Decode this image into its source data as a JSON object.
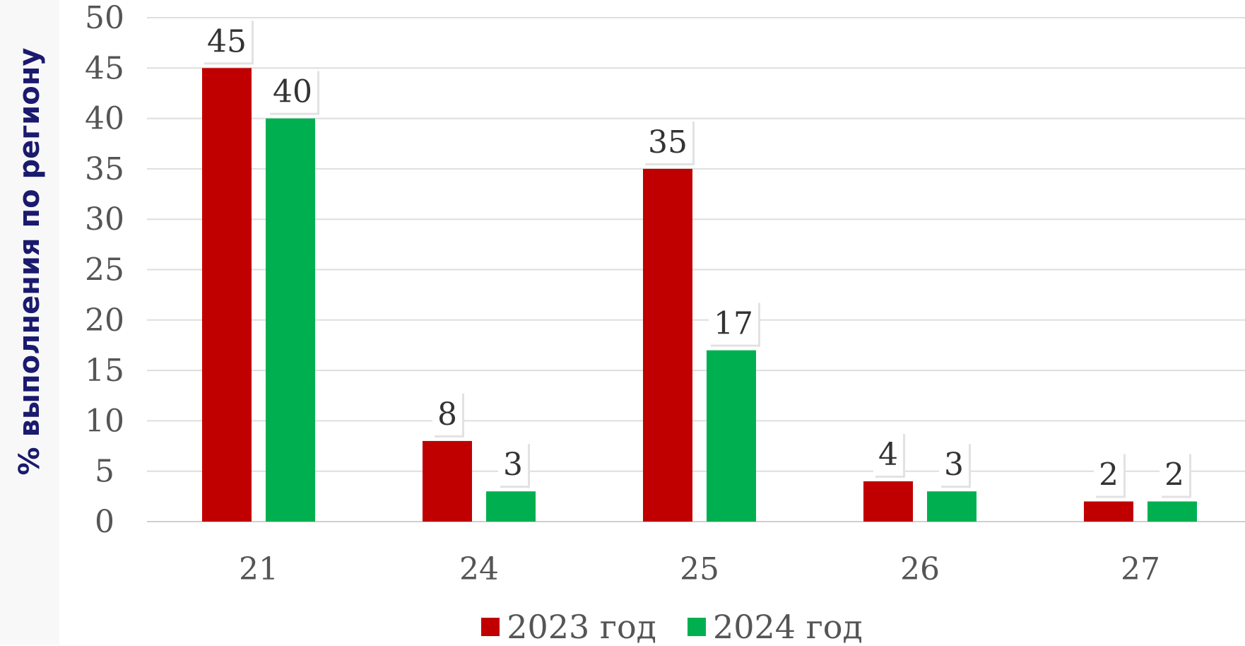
{
  "chart_data": {
    "type": "bar",
    "ylabel": "% выполнения по региону",
    "xlabel": "",
    "categories": [
      "21",
      "24",
      "25",
      "26",
      "27"
    ],
    "ylim": [
      0,
      50
    ],
    "yticks": [
      "0",
      "5",
      "10",
      "15",
      "20",
      "25",
      "30",
      "35",
      "40",
      "45",
      "50"
    ],
    "grid": true,
    "legend_position": "bottom",
    "series": [
      {
        "name": "2023 год",
        "color": "#c00000",
        "values": [
          45,
          8,
          35,
          4,
          2
        ]
      },
      {
        "name": "2024 год",
        "color": "#00b050",
        "values": [
          40,
          3,
          17,
          3,
          2
        ]
      }
    ],
    "data_labels": [
      [
        "45",
        "8",
        "35",
        "4",
        "2"
      ],
      [
        "40",
        "3",
        "17",
        "3",
        "2"
      ]
    ]
  }
}
